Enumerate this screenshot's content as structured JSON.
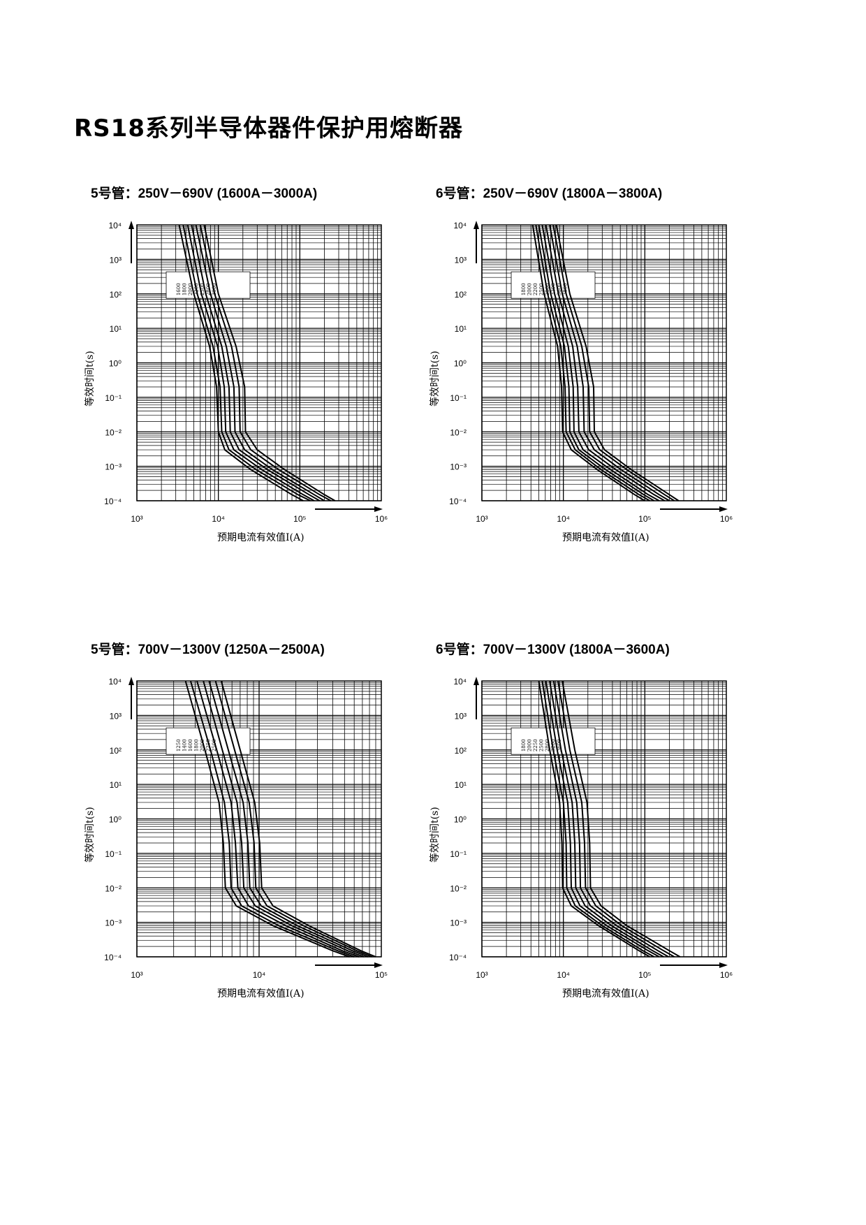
{
  "page": {
    "title": "RS18系列半导体器件保护用熔断器"
  },
  "chart_data": [
    {
      "type": "line",
      "heading": "5号管：250V－690V (1600A－3000A)",
      "xlabel": "预期电流有效值I(A)",
      "ylabel": "等效时间t(s)",
      "x_scale": "log",
      "y_scale": "log",
      "xlim": [
        1000,
        1000000
      ],
      "ylim": [
        0.0001,
        10000
      ],
      "x_ticks": [
        "10³",
        "10⁴",
        "10⁵",
        "10⁶"
      ],
      "y_ticks": [
        "10⁴",
        "10³",
        "10²",
        "10¹",
        "10⁰",
        "10⁻¹",
        "10⁻²",
        "10⁻³",
        "10⁻⁴"
      ],
      "grid": true,
      "legend_labels": [
        "1600",
        "1800",
        "2000",
        "2200",
        "2500",
        "2800",
        "3000"
      ],
      "series": [
        {
          "x": [
            3300,
            5000,
            7800,
            9500,
            10000,
            12000,
            25000,
            80000,
            110000
          ],
          "y": [
            10000,
            100,
            3,
            0.2,
            0.01,
            0.003,
            0.0008,
            0.00015,
            0.0001
          ]
        },
        {
          "x": [
            3700,
            5500,
            8600,
            10500,
            11000,
            13500,
            29000,
            95000,
            135000
          ],
          "y": [
            10000,
            100,
            3,
            0.2,
            0.01,
            0.003,
            0.0008,
            0.00015,
            0.0001
          ]
        },
        {
          "x": [
            4200,
            6200,
            9800,
            11800,
            12300,
            15500,
            34000,
            110000,
            150000
          ],
          "y": [
            10000,
            100,
            3,
            0.2,
            0.01,
            0.003,
            0.0008,
            0.00015,
            0.0001
          ]
        },
        {
          "x": [
            4700,
            7000,
            11000,
            13500,
            14000,
            18000,
            40000,
            130000,
            175000
          ],
          "y": [
            10000,
            100,
            3,
            0.2,
            0.01,
            0.003,
            0.0008,
            0.00015,
            0.0001
          ]
        },
        {
          "x": [
            5300,
            8000,
            12500,
            15500,
            16000,
            21000,
            46000,
            150000,
            200000
          ],
          "y": [
            10000,
            100,
            3,
            0.2,
            0.01,
            0.003,
            0.0008,
            0.00015,
            0.0001
          ]
        },
        {
          "x": [
            6000,
            9000,
            14500,
            18000,
            18500,
            25000,
            55000,
            175000,
            240000
          ],
          "y": [
            10000,
            100,
            3,
            0.2,
            0.01,
            0.003,
            0.0008,
            0.00015,
            0.0001
          ]
        },
        {
          "x": [
            6700,
            10000,
            16500,
            21000,
            21500,
            30000,
            65000,
            200000,
            270000
          ],
          "y": [
            10000,
            100,
            3,
            0.2,
            0.01,
            0.003,
            0.0008,
            0.00015,
            0.0001
          ]
        }
      ]
    },
    {
      "type": "line",
      "heading": "6号管：250V－690V (1800A－3800A)",
      "xlabel": "预期电流有效值I(A)",
      "ylabel": "等效时间t(s)",
      "x_scale": "log",
      "y_scale": "log",
      "xlim": [
        1000,
        1000000
      ],
      "ylim": [
        0.0001,
        10000
      ],
      "x_ticks": [
        "10³",
        "10⁴",
        "10⁵",
        "10⁶"
      ],
      "y_ticks": [
        "10⁴",
        "10³",
        "10²",
        "10¹",
        "10⁰",
        "10⁻¹",
        "10⁻²",
        "10⁻³",
        "10⁻⁴"
      ],
      "grid": true,
      "legend_labels": [
        "1800",
        "2000",
        "2200",
        "2500",
        "2800",
        "3200",
        "3600",
        "3800"
      ],
      "series": [
        {
          "x": [
            4200,
            5800,
            8500,
            9500,
            9800,
            12500,
            26000,
            75000,
            100000
          ],
          "y": [
            10000,
            100,
            3,
            0.2,
            0.01,
            0.003,
            0.0008,
            0.00015,
            0.0001
          ]
        },
        {
          "x": [
            4600,
            6400,
            9300,
            10500,
            10800,
            14000,
            29000,
            85000,
            115000
          ],
          "y": [
            10000,
            100,
            3,
            0.2,
            0.01,
            0.003,
            0.0008,
            0.00015,
            0.0001
          ]
        },
        {
          "x": [
            5000,
            7000,
            10300,
            11700,
            12000,
            15500,
            33000,
            97000,
            130000
          ],
          "y": [
            10000,
            100,
            3,
            0.2,
            0.01,
            0.003,
            0.0008,
            0.00015,
            0.0001
          ]
        },
        {
          "x": [
            5500,
            7800,
            11500,
            13200,
            13500,
            17500,
            38000,
            110000,
            150000
          ],
          "y": [
            10000,
            100,
            3,
            0.2,
            0.01,
            0.003,
            0.0008,
            0.00015,
            0.0001
          ]
        },
        {
          "x": [
            6100,
            8700,
            13000,
            15000,
            15500,
            20500,
            44000,
            130000,
            175000
          ],
          "y": [
            10000,
            100,
            3,
            0.2,
            0.01,
            0.003,
            0.0008,
            0.00015,
            0.0001
          ]
        },
        {
          "x": [
            6800,
            9700,
            14800,
            17500,
            18000,
            24000,
            51000,
            150000,
            200000
          ],
          "y": [
            10000,
            100,
            3,
            0.2,
            0.01,
            0.003,
            0.0008,
            0.00015,
            0.0001
          ]
        },
        {
          "x": [
            7500,
            10800,
            16800,
            20500,
            21000,
            28000,
            60000,
            175000,
            230000
          ],
          "y": [
            10000,
            100,
            3,
            0.2,
            0.01,
            0.003,
            0.0008,
            0.00015,
            0.0001
          ]
        },
        {
          "x": [
            8200,
            12000,
            19000,
            23500,
            24000,
            32000,
            68000,
            200000,
            260000
          ],
          "y": [
            10000,
            100,
            3,
            0.2,
            0.01,
            0.003,
            0.0008,
            0.00015,
            0.0001
          ]
        }
      ]
    },
    {
      "type": "line",
      "heading": "5号管：700V－1300V (1250A－2500A)",
      "xlabel": "预期电流有效值I(A)",
      "ylabel": "等效时间t(s)",
      "x_scale": "log",
      "y_scale": "log",
      "xlim": [
        1000,
        100000
      ],
      "ylim": [
        0.0001,
        10000
      ],
      "x_ticks": [
        "10³",
        "10⁴",
        "10⁵"
      ],
      "y_ticks": [
        "10⁴",
        "10³",
        "10²",
        "10¹",
        "10⁰",
        "10⁻¹",
        "10⁻²",
        "10⁻³",
        "10⁻⁴"
      ],
      "grid": true,
      "legend_labels": [
        "1250",
        "1400",
        "1600",
        "1800",
        "2000",
        "2250",
        "2500"
      ],
      "series": [
        {
          "x": [
            2500,
            3600,
            4700,
            5100,
            5300,
            6500,
            13000,
            40000,
            55000
          ],
          "y": [
            10000,
            100,
            3,
            0.2,
            0.01,
            0.003,
            0.0008,
            0.00015,
            0.0001
          ]
        },
        {
          "x": [
            2750,
            4000,
            5200,
            5700,
            5900,
            7200,
            14500,
            44000,
            60000
          ],
          "y": [
            10000,
            100,
            3,
            0.2,
            0.01,
            0.003,
            0.0008,
            0.00015,
            0.0001
          ]
        },
        {
          "x": [
            3100,
            4500,
            5900,
            6400,
            6700,
            8200,
            16500,
            48000,
            66000
          ],
          "y": [
            10000,
            100,
            3,
            0.2,
            0.01,
            0.003,
            0.0008,
            0.00015,
            0.0001
          ]
        },
        {
          "x": [
            3500,
            5000,
            6600,
            7200,
            7500,
            9300,
            18500,
            53000,
            72000
          ],
          "y": [
            10000,
            100,
            3,
            0.2,
            0.01,
            0.003,
            0.0008,
            0.00015,
            0.0001
          ]
        },
        {
          "x": [
            3900,
            5600,
            7400,
            8100,
            8400,
            10400,
            20500,
            58000,
            78000
          ],
          "y": [
            10000,
            100,
            3,
            0.2,
            0.01,
            0.003,
            0.0008,
            0.00015,
            0.0001
          ]
        },
        {
          "x": [
            4400,
            6300,
            8300,
            9100,
            9400,
            11600,
            23000,
            63000,
            84000
          ],
          "y": [
            10000,
            100,
            3,
            0.2,
            0.01,
            0.003,
            0.0008,
            0.00015,
            0.0001
          ]
        },
        {
          "x": [
            4900,
            7000,
            9200,
            10100,
            10500,
            13000,
            25500,
            68000,
            90000
          ],
          "y": [
            10000,
            100,
            3,
            0.2,
            0.01,
            0.003,
            0.0008,
            0.00015,
            0.0001
          ]
        }
      ]
    },
    {
      "type": "line",
      "heading": "6号管：700V－1300V (1800A－3600A)",
      "xlabel": "预期电流有效值I(A)",
      "ylabel": "等效时间t(s)",
      "x_scale": "log",
      "y_scale": "log",
      "xlim": [
        1000,
        1000000
      ],
      "ylim": [
        0.0001,
        10000
      ],
      "x_ticks": [
        "10³",
        "10⁴",
        "10⁵",
        "10⁶"
      ],
      "y_ticks": [
        "10⁴",
        "10³",
        "10²",
        "10¹",
        "10⁰",
        "10⁻¹",
        "10⁻²",
        "10⁻³",
        "10⁻⁴"
      ],
      "grid": true,
      "legend_labels": [
        "1800",
        "2000",
        "2250",
        "2500",
        "2800",
        "3200",
        "3600"
      ],
      "series": [
        {
          "x": [
            5000,
            6800,
            9000,
            9600,
            9800,
            12500,
            27000,
            85000,
            115000
          ],
          "y": [
            10000,
            100,
            3,
            0.2,
            0.01,
            0.003,
            0.0008,
            0.00015,
            0.0001
          ]
        },
        {
          "x": [
            5500,
            7500,
            10000,
            10800,
            11000,
            14000,
            30000,
            95000,
            130000
          ],
          "y": [
            10000,
            100,
            3,
            0.2,
            0.01,
            0.003,
            0.0008,
            0.00015,
            0.0001
          ]
        },
        {
          "x": [
            6100,
            8400,
            11300,
            12200,
            12500,
            16000,
            34000,
            110000,
            150000
          ],
          "y": [
            10000,
            100,
            3,
            0.2,
            0.01,
            0.003,
            0.0008,
            0.00015,
            0.0001
          ]
        },
        {
          "x": [
            6800,
            9400,
            12800,
            13800,
            14200,
            18500,
            39000,
            125000,
            170000
          ],
          "y": [
            10000,
            100,
            3,
            0.2,
            0.01,
            0.003,
            0.0008,
            0.00015,
            0.0001
          ]
        },
        {
          "x": [
            7600,
            10600,
            14600,
            15800,
            16200,
            21500,
            45000,
            145000,
            195000
          ],
          "y": [
            10000,
            100,
            3,
            0.2,
            0.01,
            0.003,
            0.0008,
            0.00015,
            0.0001
          ]
        },
        {
          "x": [
            8600,
            12000,
            16800,
            18200,
            18700,
            25000,
            52000,
            170000,
            230000
          ],
          "y": [
            10000,
            100,
            3,
            0.2,
            0.01,
            0.003,
            0.0008,
            0.00015,
            0.0001
          ]
        },
        {
          "x": [
            9700,
            13800,
            19500,
            21000,
            21500,
            29000,
            60000,
            200000,
            270000
          ],
          "y": [
            10000,
            100,
            3,
            0.2,
            0.01,
            0.003,
            0.0008,
            0.00015,
            0.0001
          ]
        }
      ]
    }
  ]
}
